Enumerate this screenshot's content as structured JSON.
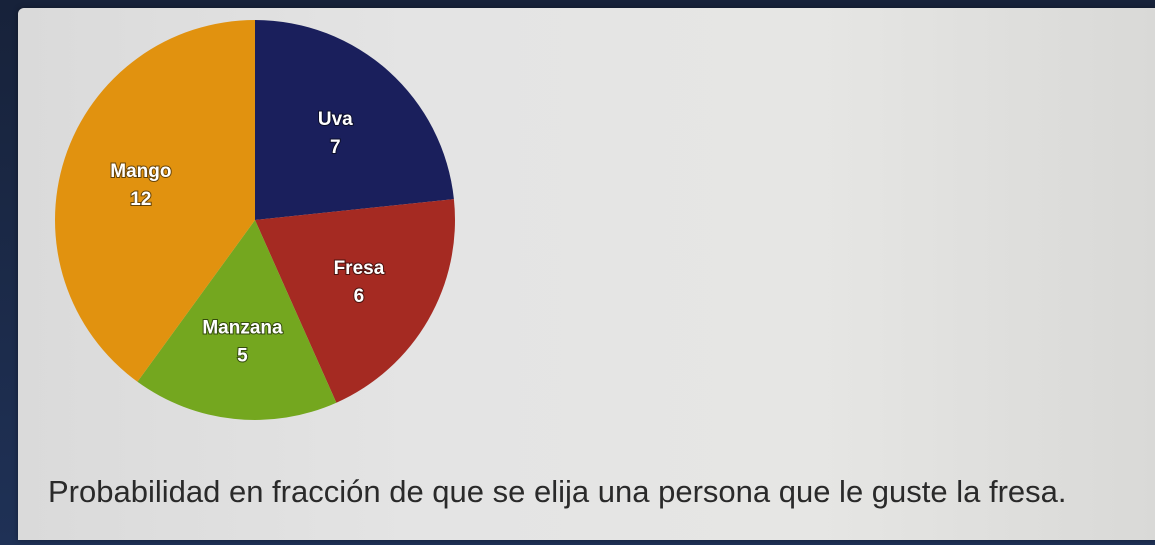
{
  "chart_data": {
    "type": "pie",
    "title": "",
    "categories": [
      "Uva",
      "Fresa",
      "Manzana",
      "Mango"
    ],
    "values": [
      7,
      6,
      5,
      12
    ],
    "colors": [
      "#1a1f5c",
      "#a52a22",
      "#74a71f",
      "#e1920f"
    ],
    "start_angle_deg": 0,
    "direction": "clockwise",
    "show_labels": true,
    "show_values": true,
    "legend": "none"
  },
  "question": {
    "text": "Probabilidad en fracción de que se elija una persona que le guste la fresa."
  }
}
